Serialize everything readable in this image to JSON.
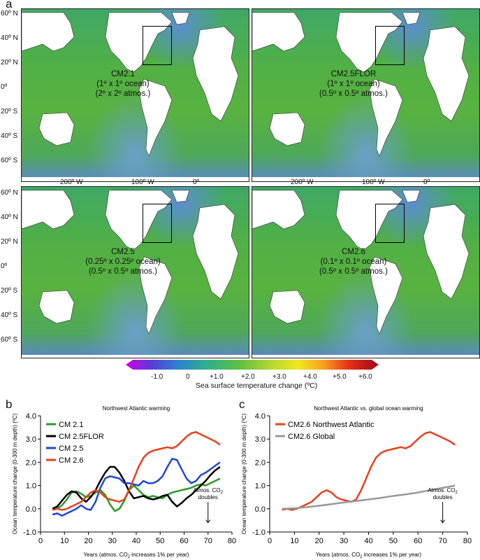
{
  "figure": {
    "panel_a_letter": "a",
    "panel_b_letter": "b",
    "panel_c_letter": "c"
  },
  "maps": {
    "lat_labels": [
      "60º N",
      "40º N",
      "20º N",
      "0º",
      "20º S",
      "40º S",
      "60º S"
    ],
    "lon_labels": [
      "200º W",
      "100º W",
      "0º"
    ],
    "panels": [
      {
        "name": "CM2.1",
        "line1": "CM2.1",
        "line2": "(1º x 1º ocean)",
        "line3": "(2º x 2º atmos.)"
      },
      {
        "name": "CM2.5FLOR",
        "line1": "CM2.5FLOR",
        "line2": "(1º x 1º ocean)",
        "line3": "(0.5º x 0.5º atmos.)"
      },
      {
        "name": "CM2.5",
        "line1": "CM2.5",
        "line2": "(0.25º x 0.25º ocean)",
        "line3": "(0.5º x 0.5º atmos.)"
      },
      {
        "name": "CM2.6",
        "line1": "CM2.6",
        "line2": "(0.1º x 0.1º ocean)",
        "line3": "(0.5º x 0.5º atmos.)"
      }
    ]
  },
  "colorbar": {
    "ticks": [
      "-1.0",
      "0",
      "+1.0",
      "+2.0",
      "+3.0",
      "+4.0",
      "+5.0",
      "+6.0"
    ],
    "title": "Sea surface temperature change (ºC)",
    "colors": [
      "#d000e8",
      "#5a3cd8",
      "#2f7fd0",
      "#2fb08c",
      "#60c040",
      "#b8d830",
      "#f0e81c",
      "#f8a020",
      "#e83018",
      "#a00818"
    ]
  },
  "chart_data": [
    {
      "type": "line",
      "title": "Northwest Atlantic warming",
      "xlabel_main": "Years (atmos. CO",
      "xlabel_sub": "2",
      "xlabel_tail": " increases 1% per year)",
      "ylabel": "Ocean temperature change (0-300 m depth) (ºC)",
      "xlim": [
        0,
        80
      ],
      "ylim": [
        -1.0,
        4.0
      ],
      "xticks": [
        "0",
        "10",
        "20",
        "30",
        "40",
        "50",
        "60",
        "70",
        "80"
      ],
      "yticks": [
        "-1.0",
        "0.0",
        "1.0",
        "2.0",
        "3.0",
        "4.0"
      ],
      "annotation": {
        "line1": "Atmos. CO",
        "sub": "2",
        "line2": "doubles",
        "x": 70
      },
      "legend": "top-left",
      "series": [
        {
          "name": "CM 2.1",
          "color": "#2a9a2a",
          "x": [
            5,
            7,
            9,
            11,
            13,
            15,
            17,
            19,
            21,
            23,
            25,
            27,
            29,
            31,
            33,
            35,
            37,
            39,
            41,
            43,
            45,
            47,
            49,
            51,
            53,
            55,
            57,
            59,
            61,
            63,
            65,
            67,
            69,
            71,
            73,
            75
          ],
          "y": [
            0.0,
            0.0,
            0.15,
            0.4,
            0.7,
            0.75,
            0.65,
            0.5,
            0.55,
            0.7,
            0.8,
            0.6,
            0.2,
            -0.1,
            0.0,
            0.35,
            0.8,
            1.0,
            0.8,
            0.6,
            0.5,
            0.55,
            0.5,
            0.45,
            0.6,
            0.7,
            0.75,
            0.8,
            0.85,
            0.9,
            1.0,
            1.05,
            1.0,
            1.1,
            1.2,
            1.3
          ]
        },
        {
          "name": "CM 2.5FLOR",
          "color": "#000000",
          "x": [
            5,
            7,
            9,
            11,
            13,
            15,
            17,
            19,
            21,
            23,
            25,
            27,
            29,
            31,
            33,
            35,
            37,
            39,
            41,
            43,
            45,
            47,
            49,
            51,
            53,
            55,
            57,
            59,
            61,
            63,
            65,
            67,
            69,
            71,
            73,
            75
          ],
          "y": [
            0.0,
            0.1,
            0.35,
            0.6,
            0.75,
            0.7,
            0.45,
            0.3,
            0.5,
            0.8,
            1.2,
            1.55,
            1.8,
            1.8,
            1.55,
            1.2,
            0.75,
            0.45,
            0.5,
            0.55,
            0.45,
            0.4,
            0.45,
            0.55,
            0.6,
            0.3,
            0.1,
            0.25,
            0.45,
            0.6,
            0.8,
            1.0,
            1.2,
            1.45,
            1.65,
            1.8
          ]
        },
        {
          "name": "CM 2.5",
          "color": "#1f47d8",
          "x": [
            5,
            7,
            9,
            11,
            13,
            15,
            17,
            19,
            21,
            23,
            25,
            27,
            29,
            31,
            33,
            35,
            37,
            39,
            41,
            43,
            45,
            47,
            49,
            51,
            53,
            55,
            57,
            59,
            61,
            63,
            65,
            67,
            69,
            71,
            73,
            75
          ],
          "y": [
            -0.25,
            -0.2,
            -0.3,
            -0.2,
            -0.1,
            0.0,
            0.15,
            0.0,
            -0.05,
            0.3,
            0.9,
            1.3,
            1.4,
            1.35,
            1.3,
            1.1,
            1.1,
            1.05,
            1.0,
            1.2,
            1.1,
            1.1,
            1.2,
            1.4,
            1.8,
            2.15,
            2.1,
            1.7,
            1.3,
            1.1,
            1.2,
            1.45,
            1.55,
            1.7,
            1.85,
            2.0
          ]
        },
        {
          "name": "CM 2.6",
          "color": "#e8401c",
          "x": [
            5,
            7,
            9,
            11,
            13,
            15,
            17,
            19,
            21,
            23,
            25,
            27,
            29,
            31,
            33,
            35,
            37,
            39,
            41,
            43,
            45,
            47,
            49,
            51,
            53,
            55,
            57,
            59,
            61,
            63,
            65,
            67,
            69,
            71,
            73,
            75
          ],
          "y": [
            -0.05,
            0.0,
            -0.05,
            0.0,
            0.1,
            0.2,
            0.3,
            0.5,
            0.7,
            0.8,
            0.7,
            0.5,
            0.4,
            0.35,
            0.3,
            0.4,
            0.8,
            1.3,
            1.8,
            2.2,
            2.4,
            2.5,
            2.55,
            2.6,
            2.65,
            2.6,
            2.7,
            2.9,
            3.1,
            3.25,
            3.3,
            3.2,
            3.1,
            3.0,
            2.9,
            2.75
          ]
        }
      ]
    },
    {
      "type": "line",
      "title": "Northwest Atlantic vs. global ocean warming",
      "xlabel_main": "Years (atmos. CO",
      "xlabel_sub": "2",
      "xlabel_tail": " increases 1% per year)",
      "ylabel": "Ocean temperature change (0-300 m depth) (ºC)",
      "xlim": [
        0,
        80
      ],
      "ylim": [
        -1.0,
        4.0
      ],
      "xticks": [
        "0",
        "10",
        "20",
        "30",
        "40",
        "50",
        "60",
        "70",
        "80"
      ],
      "yticks": [
        "-1.0",
        "0.0",
        "1.0",
        "2.0",
        "3.0",
        "4.0"
      ],
      "annotation": {
        "line1": "Atmos. CO",
        "sub": "2",
        "line2": "doubles",
        "x": 70
      },
      "legend": "top-left",
      "series": [
        {
          "name": "CM2.6 Northwest Atlantic",
          "color": "#e8401c",
          "x": [
            5,
            7,
            9,
            11,
            13,
            15,
            17,
            19,
            21,
            23,
            25,
            27,
            29,
            31,
            33,
            35,
            37,
            39,
            41,
            43,
            45,
            47,
            49,
            51,
            53,
            55,
            57,
            59,
            61,
            63,
            65,
            67,
            69,
            71,
            73,
            75
          ],
          "y": [
            -0.05,
            0.0,
            -0.05,
            0.0,
            0.1,
            0.2,
            0.3,
            0.5,
            0.7,
            0.8,
            0.7,
            0.5,
            0.4,
            0.35,
            0.3,
            0.4,
            0.8,
            1.3,
            1.8,
            2.2,
            2.4,
            2.5,
            2.55,
            2.6,
            2.65,
            2.6,
            2.7,
            2.9,
            3.1,
            3.25,
            3.3,
            3.2,
            3.1,
            3.0,
            2.9,
            2.75
          ]
        },
        {
          "name": "CM2.6 Global",
          "color": "#999999",
          "x": [
            5,
            10,
            15,
            20,
            25,
            30,
            35,
            40,
            45,
            50,
            55,
            60,
            65,
            70,
            75
          ],
          "y": [
            0.0,
            0.02,
            0.07,
            0.13,
            0.2,
            0.27,
            0.33,
            0.4,
            0.47,
            0.55,
            0.62,
            0.7,
            0.8,
            0.9,
            1.0
          ]
        }
      ]
    }
  ]
}
